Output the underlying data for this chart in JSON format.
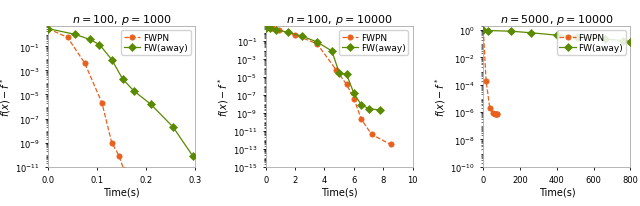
{
  "subplots": [
    {
      "title": "$n = 100,\\, p = 1000$",
      "xlabel": "Time(s)",
      "ylabel": "$f(x) - f^*$",
      "xlim": [
        0,
        0.3
      ],
      "ylim": [
        1e-11,
        5
      ],
      "yticks_log": [
        0,
        -5,
        -10
      ],
      "xticks": [
        0,
        0.1,
        0.2,
        0.3
      ],
      "fwpn_x": [
        0.0,
        0.04,
        0.075,
        0.11,
        0.13,
        0.145,
        0.155,
        0.16,
        0.165
      ],
      "fwpn_y": [
        3.0,
        0.55,
        0.004,
        2e-06,
        1e-09,
        8e-11,
        5e-12,
        4e-12,
        4e-12
      ],
      "fwaway_x": [
        0.0,
        0.055,
        0.085,
        0.105,
        0.13,
        0.152,
        0.175,
        0.21,
        0.255,
        0.295
      ],
      "fwaway_y": [
        3.0,
        1.0,
        0.38,
        0.14,
        0.008,
        0.0002,
        2e-05,
        1.5e-06,
        2e-08,
        8e-11
      ]
    },
    {
      "title": "$n = 100,\\, p = 10000$",
      "xlabel": "Time(s)",
      "ylabel": "$f(x) - f^*$",
      "xlim": [
        0,
        10
      ],
      "ylim": [
        1e-15,
        5
      ],
      "yticks_log": [
        0,
        -5,
        -10,
        -15
      ],
      "xticks": [
        0,
        2,
        4,
        6,
        8,
        10
      ],
      "fwpn_x": [
        0.0,
        0.4,
        0.9,
        2.0,
        3.5,
        4.8,
        5.5,
        6.0,
        6.5,
        7.2,
        8.5
      ],
      "fwpn_y": [
        3.0,
        2.6,
        1.8,
        0.5,
        0.05,
        6e-05,
        1.5e-06,
        4e-08,
        2e-10,
        4e-12,
        3e-13
      ],
      "fwaway_x": [
        0.0,
        0.3,
        0.7,
        1.5,
        2.5,
        3.5,
        4.5,
        5.0,
        5.5,
        6.0,
        6.5,
        7.0,
        7.8
      ],
      "fwaway_y": [
        3.0,
        2.6,
        1.8,
        1.0,
        0.35,
        0.08,
        0.008,
        3e-05,
        2e-05,
        1.5e-07,
        8e-09,
        3e-09,
        2e-09
      ]
    },
    {
      "title": "$n = 5000,\\, p = 10000$",
      "xlabel": "Time(s)",
      "ylabel": "$f(x) - f^*$",
      "xlim": [
        0,
        800
      ],
      "ylim": [
        1e-10,
        2
      ],
      "yticks_log": [
        0,
        -5,
        -10
      ],
      "xticks": [
        0,
        200,
        400,
        600,
        800
      ],
      "fwpn_x": [
        0.0,
        15,
        35,
        55,
        65,
        68,
        72,
        75
      ],
      "fwpn_y": [
        1.0,
        0.0002,
        2e-06,
        8e-07,
        7e-07,
        7e-07,
        7e-07,
        7e-07
      ],
      "fwaway_x": [
        0.0,
        25,
        150,
        260,
        400,
        510,
        660,
        760,
        800
      ],
      "fwaway_y": [
        1.0,
        0.92,
        0.82,
        0.63,
        0.42,
        0.32,
        0.22,
        0.17,
        0.14
      ]
    }
  ],
  "fwpn_color": "#E8601C",
  "fwaway_color": "#5A8A00",
  "fwpn_label": "FWPN",
  "fwaway_label": "FW(away)",
  "legend_fontsize": 6.5,
  "title_fontsize": 8,
  "axis_label_fontsize": 7,
  "tick_fontsize": 6
}
